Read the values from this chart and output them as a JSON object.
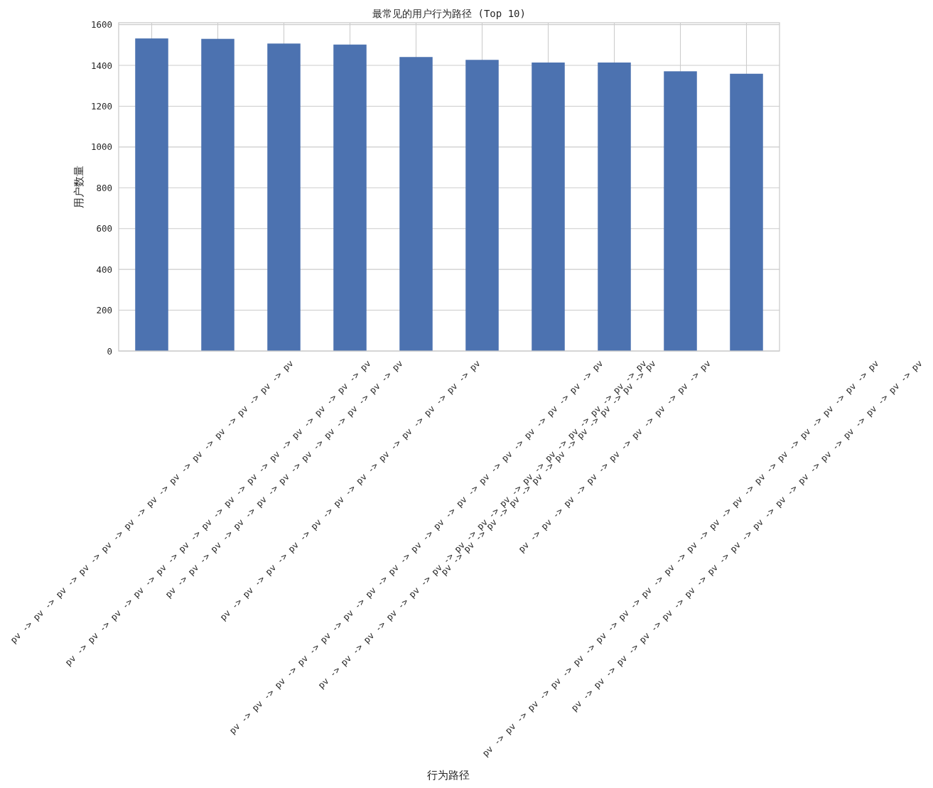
{
  "chart_data": {
    "type": "bar",
    "title": "最常见的用户行为路径 (Top 10)",
    "xlabel": "行为路径",
    "ylabel": "用户数量",
    "categories": [
      "pv -> pv -> pv -> pv -> pv -> pv -> pv -> pv -> pv -> pv -> pv -> pv -> pv",
      "pv -> pv -> pv -> pv -> pv -> pv -> pv -> pv -> pv -> pv -> pv -> pv -> pv -> pv",
      "pv -> pv -> pv -> pv -> pv -> pv -> pv -> pv -> pv -> pv -> pv",
      "pv -> pv -> pv -> pv -> pv -> pv -> pv -> pv -> pv -> pv -> pv -> pv",
      "pv -> pv -> pv -> pv -> pv -> pv -> pv -> pv -> pv -> pv -> pv -> pv -> pv -> pv -> pv -> pv -> pv",
      "pv -> pv -> pv -> pv -> pv -> pv -> pv -> pv -> pv -> pv -> pv -> pv -> pv -> pv -> pv",
      "pv -> pv -> pv -> pv -> pv -> pv -> pv -> pv -> pv -> pv",
      "pv -> pv -> pv -> pv -> pv -> pv -> pv -> pv -> pv",
      "pv -> pv -> pv -> pv -> pv -> pv -> pv -> pv -> pv -> pv -> pv -> pv -> pv -> pv -> pv -> pv -> pv -> pv",
      "pv -> pv -> pv -> pv -> pv -> pv -> pv -> pv -> pv -> pv -> pv -> pv -> pv -> pv -> pv -> pv"
    ],
    "values": [
      1532,
      1530,
      1507,
      1502,
      1441,
      1427,
      1414,
      1414,
      1371,
      1359
    ],
    "color": "#4c72b0",
    "ylim": [
      0,
      1609
    ],
    "yticks": [
      0,
      200,
      400,
      600,
      800,
      1000,
      1200,
      1400,
      1600
    ],
    "grid": true
  }
}
